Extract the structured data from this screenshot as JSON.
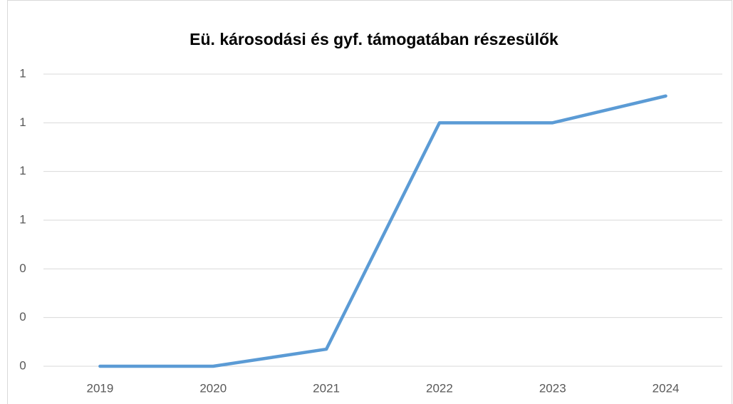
{
  "chart_data": {
    "type": "line",
    "title": "Eü. károsodási és gyf. támogatában részesülők",
    "categories": [
      "2019",
      "2020",
      "2021",
      "2022",
      "2023",
      "2024"
    ],
    "series": [
      {
        "name": "Eü. károsodási és gyf. támogatában részesülők",
        "color": "#5b9bd5",
        "values": [
          0,
          0,
          0.07,
          1.0,
          1.0,
          1.11
        ]
      }
    ],
    "ylim": [
      0,
      1.2
    ],
    "yticks": [
      0,
      {
        "value": 0.2,
        "label": "0"
      },
      {
        "value": 0.4,
        "label": "0"
      },
      {
        "value": 0.6,
        "label": "1"
      },
      {
        "value": 0.8,
        "label": "1"
      },
      1,
      {
        "value": 1.2,
        "label": "1"
      }
    ],
    "grid": true
  }
}
